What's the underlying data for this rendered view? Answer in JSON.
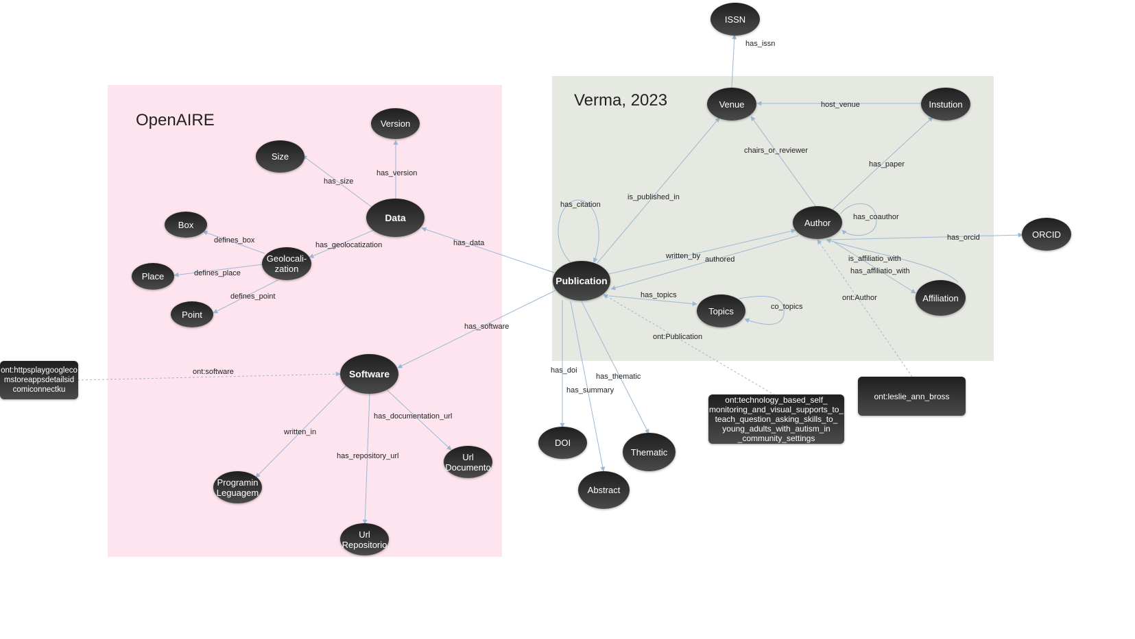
{
  "groups": {
    "openaire": {
      "title": "OpenAIRE",
      "color": "#fde4ee"
    },
    "verma": {
      "title": "Verma, 2023",
      "color": "#e6e8e2"
    }
  },
  "nodes": {
    "issn": "ISSN",
    "venue": "Venue",
    "institution": "Instution",
    "author": "Author",
    "orcid": "ORCID",
    "affiliation": "Affiliation",
    "topics": "Topics",
    "publication": "Publication",
    "data": "Data",
    "version": "Version",
    "size": "Size",
    "box": "Box",
    "geolocalization": "Geolocali-\nzation",
    "place": "Place",
    "point": "Point",
    "software": "Software",
    "programming_language": "Programin\nLeguagem",
    "url_repository": "Url\nRepositorio",
    "url_documentation": "Url\nDocumento",
    "doi": "DOI",
    "abstract": "Abstract",
    "thematic": "Thematic"
  },
  "instances": {
    "software_instance": "ont:httpsplaygoogleco mstoreappsdetailsid comiconnectku",
    "publication_instance": "ont:technology_based_self_ monitoring_and_visual_supports_to_ teach_question_asking_skills_to_ young_adults_with_autism_in _community_settings",
    "author_instance": "ont:leslie_ann_bross"
  },
  "edge_labels": {
    "has_issn": "has_issn",
    "host_venue": "host_venue",
    "chairs_or_reviewer": "chairs_or_reviewer",
    "has_paper": "has_paper",
    "has_coauthor": "has_coauthor",
    "has_orcid": "has_orcid",
    "is_published_in": "is_published_in",
    "has_citation": "has_citation",
    "written_by": "written_by",
    "authored": "authored",
    "is_affiliatio_with": "is_affiliatio_with",
    "has_affiliation_with": "has_affiliatio_with",
    "ont_author": "ont:Author",
    "has_topics": "has_topics",
    "co_topics": "co_topics",
    "ont_publication": "ont:Publication",
    "has_data": "has_data",
    "has_version": "has_version",
    "has_size": "has_size",
    "has_geolocatization": "has_geolocatization",
    "defines_box": "defines_box",
    "defines_place": "defines_place",
    "defines_point": "defines_point",
    "has_software": "has_software",
    "ont_software": "ont:software",
    "written_in": "written_in",
    "has_repository_url": "has_repository_url",
    "has_documentation_url": "has_documentation_url",
    "has_doi": "has_doi",
    "has_summary": "has_summary",
    "has_thematic": "has_thematic"
  },
  "colors": {
    "edge": "#9bb8d3",
    "node_fill": "#2e2e2e"
  }
}
